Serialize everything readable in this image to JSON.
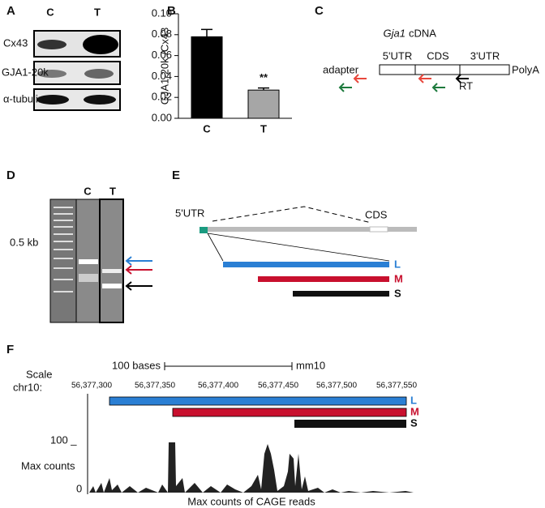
{
  "panels": {
    "a": {
      "label": "A",
      "lanes": [
        "C",
        "T"
      ],
      "bands": [
        "Cx43",
        "GJA1-20k",
        "α-tubulin"
      ]
    },
    "b": {
      "label": "B"
    },
    "c": {
      "label": "C",
      "gene": "Gja1",
      "suffix": "cDNA",
      "regions": [
        "5'UTR",
        "CDS",
        "3'UTR"
      ],
      "polya": "PolyA",
      "adapter": "adapter",
      "rt": "RT"
    },
    "d": {
      "label": "D",
      "lanes": [
        "C",
        "T"
      ],
      "size": "0.5 kb"
    },
    "e": {
      "label": "E",
      "utr": "5'UTR",
      "cds": "CDS",
      "isoforms": [
        "L",
        "M",
        "S"
      ]
    },
    "f": {
      "label": "F",
      "scale": "Scale",
      "chrom": "chr10:",
      "bases": "100 bases",
      "assembly": "mm10",
      "coords": [
        "56,377,300",
        "56,377,350",
        "56,377,400",
        "56,377,450",
        "56,377,500",
        "56,377,550"
      ],
      "isoforms": [
        "L",
        "M",
        "S"
      ],
      "ymax": "100 _",
      "ymin": "0",
      "ylabel": "Max counts",
      "xlabel": "Max counts of CAGE reads"
    }
  },
  "chart_data": {
    "type": "bar",
    "ylabel": "GJA1-20k /Cx43",
    "categories": [
      "C",
      "T"
    ],
    "values": [
      0.078,
      0.027
    ],
    "errors": [
      0.007,
      0.002
    ],
    "colors": [
      "#000000",
      "#a6a6a6"
    ],
    "annotation": "**",
    "ylim": [
      0,
      0.1
    ],
    "yticks": [
      {
        "value": 0,
        "label": "0.00"
      },
      {
        "value": 0.02,
        "label": "0.02"
      },
      {
        "value": 0.04,
        "label": "0.04"
      },
      {
        "value": 0.06,
        "label": "0.06"
      },
      {
        "value": 0.08,
        "label": "0.08"
      },
      {
        "value": 0.1,
        "label": "0.10"
      }
    ]
  }
}
